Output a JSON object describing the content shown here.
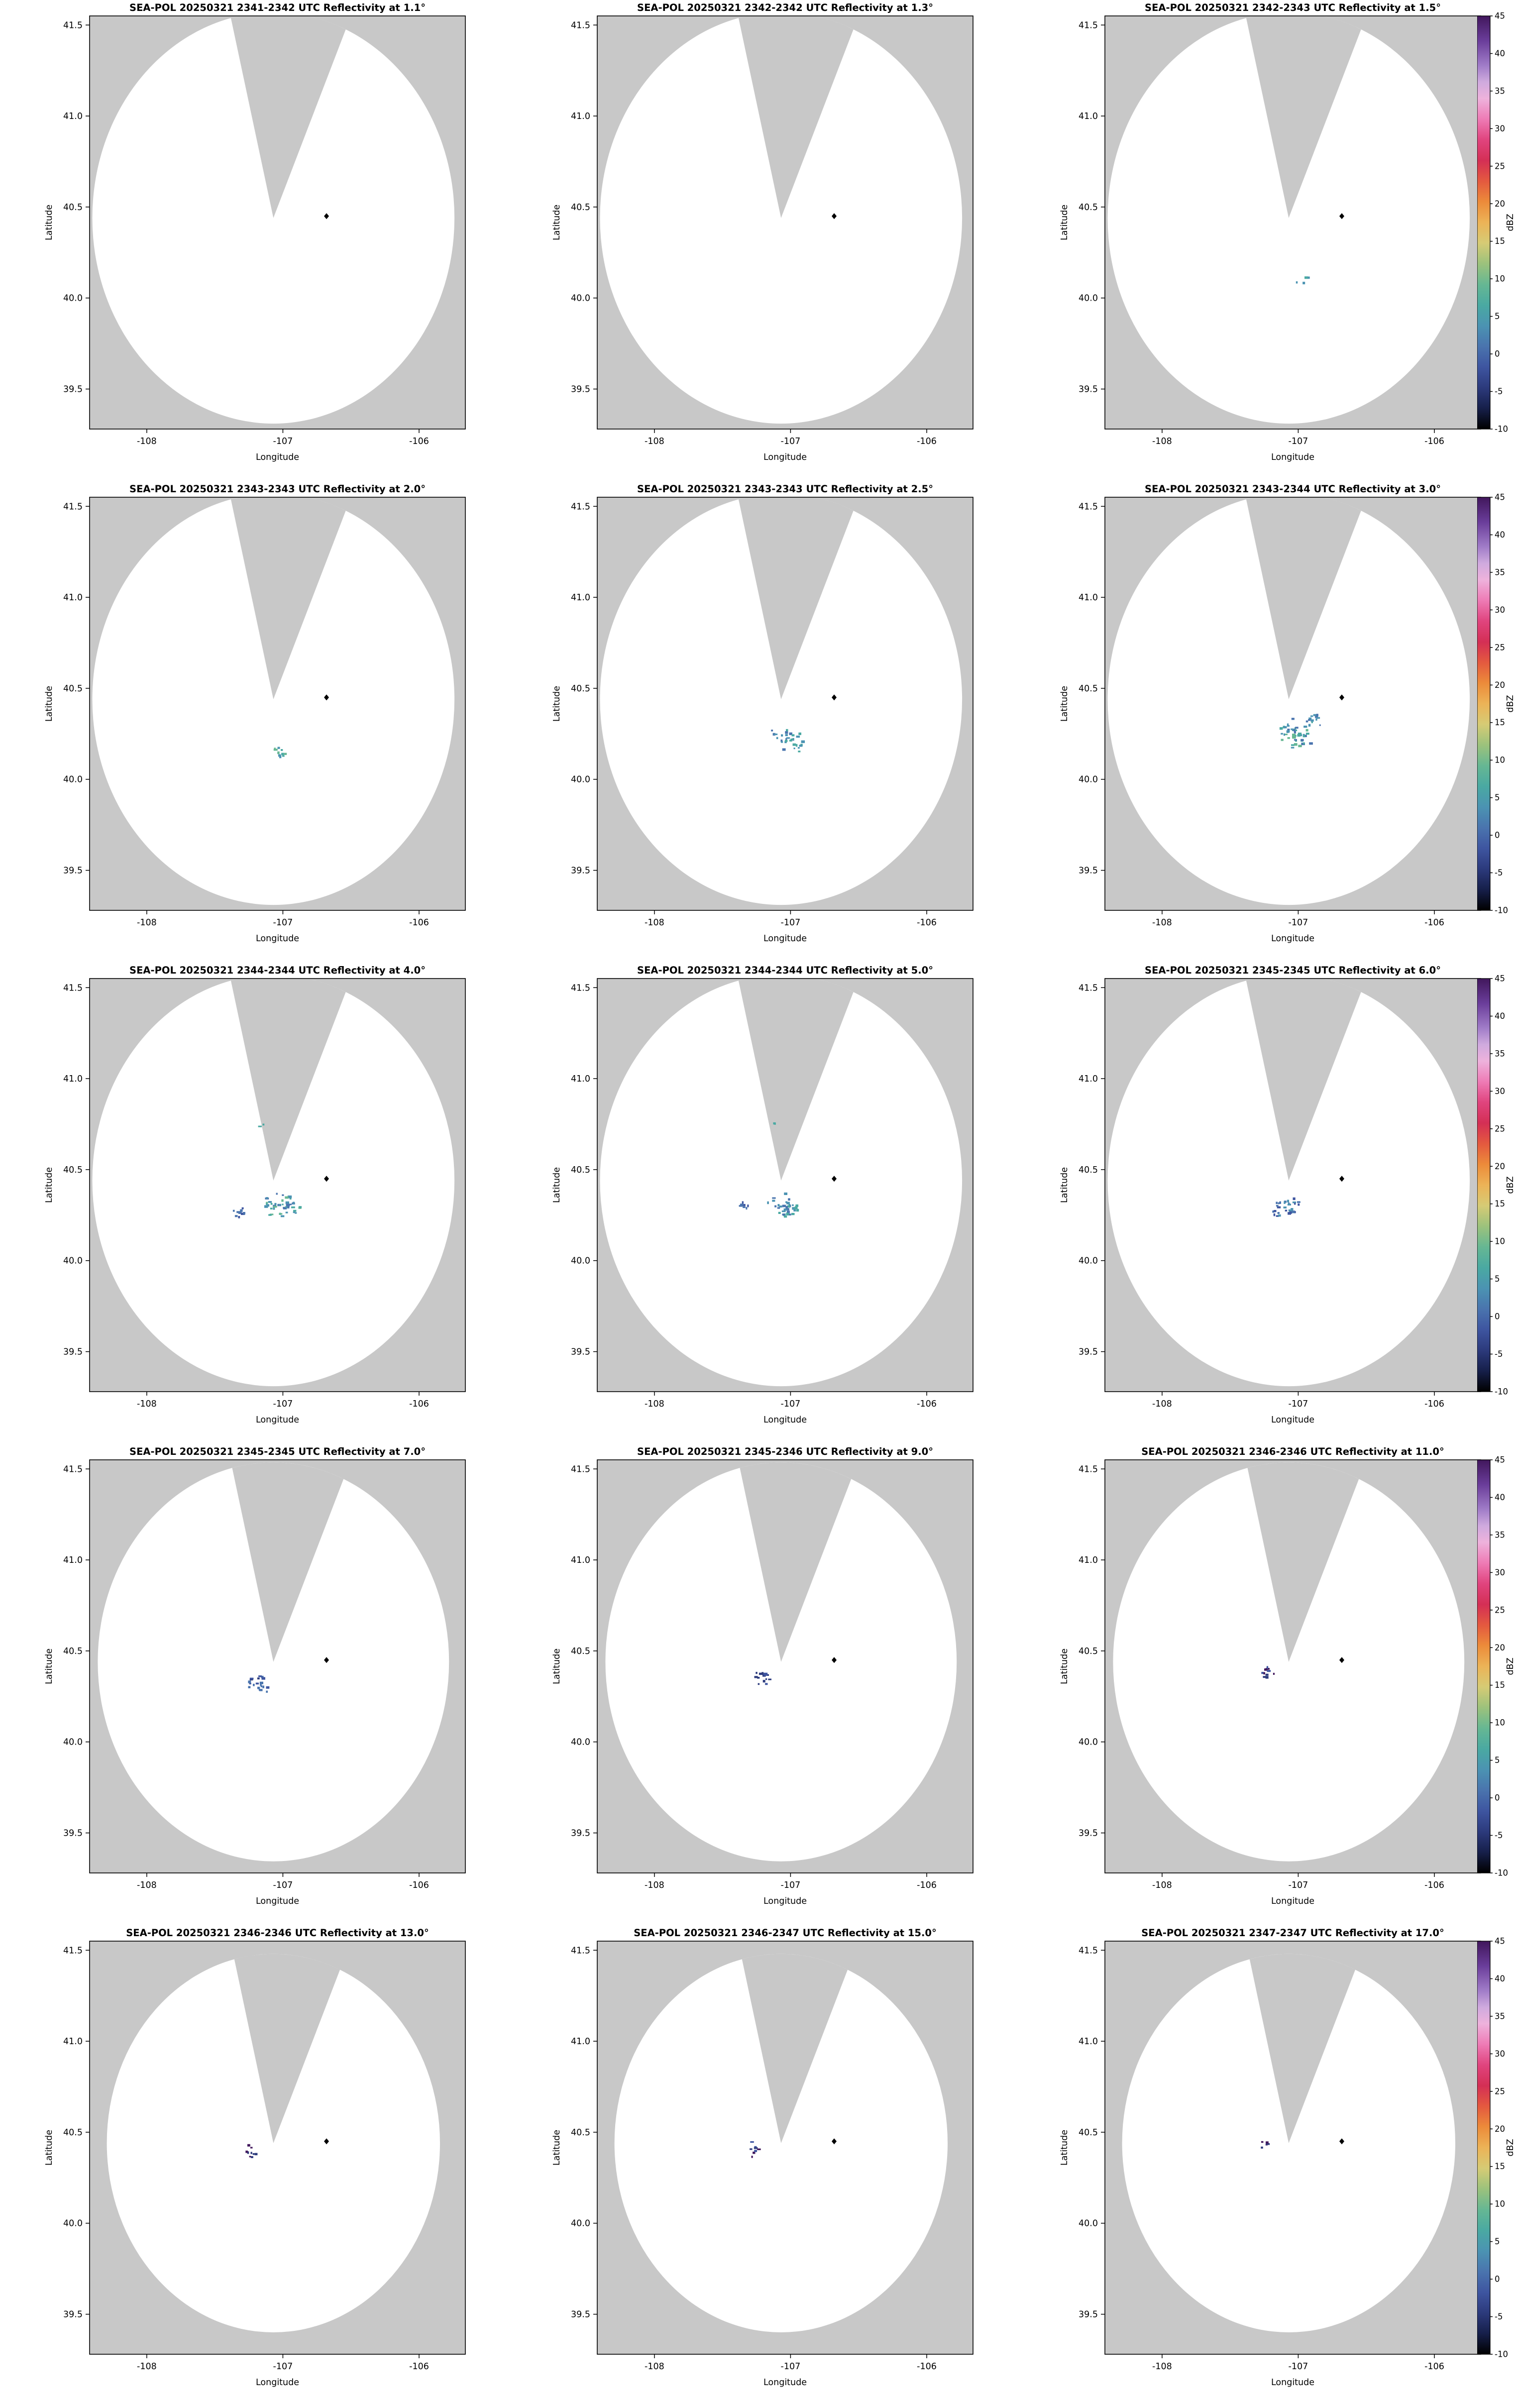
{
  "chart_data": {
    "type": "heatmap",
    "subtype": "radar_ppi_multipanel",
    "instrument": "SEA-POL",
    "date": "20250321",
    "xlabel": "Longitude",
    "ylabel": "Latitude",
    "x_ticks": [
      "-108",
      "-107",
      "-106"
    ],
    "y_ticks": [
      "41.5",
      "41.0",
      "40.5",
      "40.0",
      "39.5"
    ],
    "xlim": [
      -108.42,
      -105.66
    ],
    "ylim": [
      39.28,
      41.55
    ],
    "grid": {
      "rows": 5,
      "cols": 3
    },
    "map_bg_color": "#c8c8c8",
    "coverage_color": "#ffffff",
    "radar": {
      "center_lon": -107.07,
      "center_lat": 40.44,
      "rx_deg": 1.33,
      "ry_deg": 1.13,
      "row_radius_scale": [
        1.0,
        1.0,
        1.0,
        0.97,
        0.92
      ],
      "wedge_angles_deg": [
        -12,
        21
      ]
    },
    "marker": {
      "lon": -106.68,
      "lat": 40.45,
      "color": "#000000"
    },
    "colorbar": {
      "label": "dBZ",
      "tick_min": -10,
      "tick_max": 45,
      "tick_step": 5,
      "stops": [
        [
          0,
          "#41175c"
        ],
        [
          6,
          "#6a3d9a"
        ],
        [
          12,
          "#a07cc8"
        ],
        [
          16,
          "#cfaade"
        ],
        [
          20,
          "#eeb2dc"
        ],
        [
          25,
          "#ee7bb5"
        ],
        [
          30,
          "#e0447e"
        ],
        [
          35,
          "#d42f55"
        ],
        [
          40,
          "#e4593f"
        ],
        [
          45,
          "#ec8b3a"
        ],
        [
          50,
          "#ecb357"
        ],
        [
          55,
          "#d6cb75"
        ],
        [
          60,
          "#9cc27c"
        ],
        [
          65,
          "#66b793"
        ],
        [
          70,
          "#4aa9a2"
        ],
        [
          75,
          "#4b93b2"
        ],
        [
          80,
          "#4a74ae"
        ],
        [
          85,
          "#3e55a0"
        ],
        [
          90,
          "#2c3a7c"
        ],
        [
          95,
          "#161f4a"
        ],
        [
          100,
          "#000000"
        ]
      ]
    },
    "panels": [
      {
        "title": "SEA-POL 20250321 2341-2342 UTC Reflectivity at 1.1°",
        "time_utc": "2341-2342",
        "elevation_deg": 1.1,
        "clusters": []
      },
      {
        "title": "SEA-POL 20250321 2342-2342 UTC Reflectivity at 1.3°",
        "time_utc": "2342-2342",
        "elevation_deg": 1.3,
        "clusters": []
      },
      {
        "title": "SEA-POL 20250321 2342-2343 UTC Reflectivity at 1.5°",
        "time_utc": "2342-2343",
        "elevation_deg": 1.5,
        "clusters": [
          [
            -106.97,
            40.1,
            4,
            0.05,
            0.03,
            [
              "#4aa9a2",
              "#4b93b2"
            ]
          ]
        ]
      },
      {
        "title": "SEA-POL 20250321 2343-2343 UTC Reflectivity at 2.0°",
        "time_utc": "2343-2343",
        "elevation_deg": 2.0,
        "clusters": [
          [
            -107.0,
            40.15,
            10,
            0.1,
            0.05,
            [
              "#4aa9a2",
              "#4b93b2",
              "#66b793"
            ]
          ]
        ]
      },
      {
        "title": "SEA-POL 20250321 2343-2343 UTC Reflectivity at 2.5°",
        "time_utc": "2343-2343",
        "elevation_deg": 2.5,
        "clusters": [
          [
            -107.03,
            40.24,
            22,
            0.14,
            0.08,
            [
              "#4aa9a2",
              "#4b93b2",
              "#4a74ae"
            ]
          ],
          [
            -106.93,
            40.18,
            8,
            0.06,
            0.04,
            [
              "#4aa9a2",
              "#4b93b2"
            ]
          ]
        ]
      },
      {
        "title": "SEA-POL 20250321 2343-2344 UTC Reflectivity at 3.0°",
        "time_utc": "2343-2344",
        "elevation_deg": 3.0,
        "clusters": [
          [
            -107.02,
            40.25,
            46,
            0.16,
            0.09,
            [
              "#4aa9a2",
              "#4b93b2",
              "#4a74ae",
              "#66b793"
            ]
          ],
          [
            -106.9,
            40.33,
            12,
            0.08,
            0.04,
            [
              "#4a74ae",
              "#4b93b2"
            ]
          ]
        ]
      },
      {
        "title": "SEA-POL 20250321 2344-2344 UTC Reflectivity at 4.0°",
        "time_utc": "2344-2344",
        "elevation_deg": 4.0,
        "clusters": [
          [
            -107.0,
            40.3,
            46,
            0.15,
            0.08,
            [
              "#4a74ae",
              "#4aa9a2",
              "#66b793",
              "#4b93b2"
            ]
          ],
          [
            -107.32,
            40.26,
            9,
            0.07,
            0.04,
            [
              "#4a74ae",
              "#3e55a0"
            ]
          ],
          [
            -107.15,
            40.74,
            2,
            0.02,
            0.01,
            [
              "#4aa9a2"
            ]
          ]
        ]
      },
      {
        "title": "SEA-POL 20250321 2344-2344 UTC Reflectivity at 5.0°",
        "time_utc": "2344-2344",
        "elevation_deg": 5.0,
        "clusters": [
          [
            -107.03,
            40.3,
            36,
            0.14,
            0.07,
            [
              "#4a74ae",
              "#4aa9a2",
              "#4b93b2"
            ]
          ],
          [
            -107.35,
            40.3,
            7,
            0.05,
            0.03,
            [
              "#3e55a0",
              "#4a74ae"
            ]
          ],
          [
            -107.12,
            40.75,
            2,
            0.02,
            0.01,
            [
              "#4aa9a2"
            ]
          ]
        ]
      },
      {
        "title": "SEA-POL 20250321 2345-2345 UTC Reflectivity at 6.0°",
        "time_utc": "2345-2345",
        "elevation_deg": 6.0,
        "clusters": [
          [
            -107.08,
            40.3,
            30,
            0.13,
            0.06,
            [
              "#4a74ae",
              "#3e55a0",
              "#4b93b2"
            ]
          ]
        ]
      },
      {
        "title": "SEA-POL 20250321 2345-2345 UTC Reflectivity at 7.0°",
        "time_utc": "2345-2345",
        "elevation_deg": 7.0,
        "clusters": [
          [
            -107.17,
            40.32,
            20,
            0.1,
            0.05,
            [
              "#3e55a0",
              "#2c3a7c",
              "#4a74ae"
            ]
          ]
        ]
      },
      {
        "title": "SEA-POL 20250321 2345-2346 UTC Reflectivity at 9.0°",
        "time_utc": "2345-2346",
        "elevation_deg": 9.0,
        "clusters": [
          [
            -107.2,
            40.35,
            14,
            0.08,
            0.04,
            [
              "#2c3a7c",
              "#3e55a0"
            ]
          ]
        ]
      },
      {
        "title": "SEA-POL 20250321 2346-2346 UTC Reflectivity at 11.0°",
        "time_utc": "2346-2346",
        "elevation_deg": 11.0,
        "clusters": [
          [
            -107.22,
            40.38,
            10,
            0.06,
            0.04,
            [
              "#2c3a7c",
              "#41175c",
              "#3e55a0"
            ]
          ]
        ]
      },
      {
        "title": "SEA-POL 20250321 2346-2346 UTC Reflectivity at 13.0°",
        "time_utc": "2346-2346",
        "elevation_deg": 13.0,
        "clusters": [
          [
            -107.24,
            40.4,
            9,
            0.06,
            0.05,
            [
              "#2c3a7c",
              "#41175c"
            ]
          ]
        ]
      },
      {
        "title": "SEA-POL 20250321 2346-2347 UTC Reflectivity at 15.0°",
        "time_utc": "2346-2347",
        "elevation_deg": 15.0,
        "clusters": [
          [
            -107.25,
            40.41,
            8,
            0.05,
            0.05,
            [
              "#2c3a7c",
              "#41175c",
              "#3e55a0"
            ]
          ]
        ]
      },
      {
        "title": "SEA-POL 20250321 2347-2347 UTC Reflectivity at 17.0°",
        "time_utc": "2347-2347",
        "elevation_deg": 17.0,
        "clusters": [
          [
            -107.25,
            40.43,
            5,
            0.04,
            0.03,
            [
              "#2c3a7c",
              "#41175c"
            ]
          ]
        ]
      }
    ]
  }
}
